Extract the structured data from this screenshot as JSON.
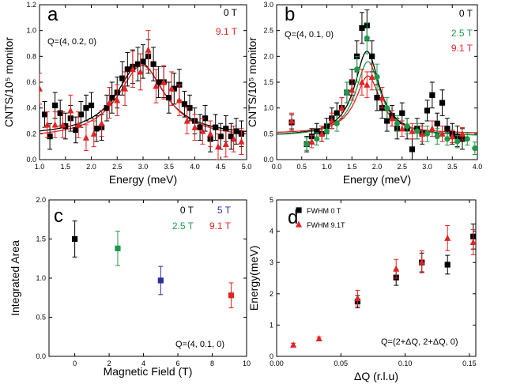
{
  "colors": {
    "black": "#000000",
    "red": "#e32222",
    "green": "#1c9a4a",
    "blue": "#2a2d9c"
  },
  "chart_data": [
    {
      "id": "a",
      "type": "scatter",
      "letter": "a",
      "xlabel": "Energy (meV)",
      "ylabel": "CNTS/10⁵ monitor",
      "xlim": [
        1.0,
        5.0
      ],
      "ylim": [
        0.0,
        1.2
      ],
      "xticks": [
        "1.0",
        "1.5",
        "2.0",
        "2.5",
        "3.0",
        "3.5",
        "4.0",
        "4.5",
        "5.0"
      ],
      "yticks": [
        "0.0",
        "0.2",
        "0.4",
        "0.6",
        "0.8",
        "1.0",
        "1.2"
      ],
      "annotation": "Q=(4, 0.2, 0)",
      "legend": [
        {
          "label": "0 T",
          "color": "#000000"
        },
        {
          "label": "9.1 T",
          "color": "#e32222"
        }
      ],
      "series": [
        {
          "name": "0 T",
          "color": "#000000",
          "marker": "square",
          "x": [
            1.1,
            1.2,
            1.3,
            1.4,
            1.5,
            1.6,
            1.7,
            1.8,
            1.9,
            2.0,
            2.1,
            2.2,
            2.3,
            2.4,
            2.5,
            2.6,
            2.7,
            2.8,
            2.9,
            3.0,
            3.1,
            3.2,
            3.3,
            3.4,
            3.5,
            3.6,
            3.7,
            3.8,
            3.9,
            4.0,
            4.1,
            4.2,
            4.3,
            4.4,
            4.5,
            4.6,
            4.7,
            4.8,
            4.9
          ],
          "y": [
            0.35,
            0.18,
            0.42,
            0.36,
            0.26,
            0.32,
            0.23,
            0.35,
            0.4,
            0.42,
            0.24,
            0.25,
            0.4,
            0.48,
            0.52,
            0.63,
            0.7,
            0.72,
            0.74,
            0.76,
            0.8,
            0.74,
            0.6,
            0.6,
            0.48,
            0.55,
            0.58,
            0.43,
            0.4,
            0.3,
            0.25,
            0.32,
            0.16,
            0.25,
            0.18,
            0.24,
            0.18,
            0.22,
            0.2
          ],
          "err": [
            0.1,
            0.1,
            0.1,
            0.1,
            0.1,
            0.1,
            0.1,
            0.1,
            0.1,
            0.1,
            0.1,
            0.1,
            0.1,
            0.12,
            0.12,
            0.13,
            0.13,
            0.13,
            0.13,
            0.13,
            0.13,
            0.13,
            0.12,
            0.12,
            0.12,
            0.12,
            0.12,
            0.1,
            0.1,
            0.1,
            0.1,
            0.1,
            0.1,
            0.1,
            0.1,
            0.1,
            0.1,
            0.1,
            0.1
          ]
        },
        {
          "name": "9.1 T",
          "color": "#e32222",
          "marker": "triangle",
          "x": [
            1.0,
            1.15,
            1.3,
            1.45,
            1.6,
            1.75,
            1.9,
            2.05,
            2.2,
            2.35,
            2.5,
            2.65,
            2.8,
            2.95,
            3.1,
            3.25,
            3.4,
            3.55,
            3.7,
            3.85,
            4.0,
            4.15,
            4.3,
            4.45,
            4.6,
            4.75,
            4.9
          ],
          "y": [
            0.55,
            0.27,
            0.27,
            0.27,
            0.38,
            0.27,
            0.17,
            0.2,
            0.28,
            0.44,
            0.46,
            0.55,
            0.7,
            0.68,
            0.85,
            0.57,
            0.6,
            0.55,
            0.46,
            0.3,
            0.25,
            0.22,
            0.2,
            0.1,
            0.12,
            0.16,
            0.14
          ],
          "err": [
            0.12,
            0.1,
            0.1,
            0.1,
            0.12,
            0.1,
            0.1,
            0.1,
            0.1,
            0.12,
            0.12,
            0.13,
            0.14,
            0.14,
            0.15,
            0.13,
            0.13,
            0.13,
            0.12,
            0.1,
            0.1,
            0.1,
            0.1,
            0.1,
            0.1,
            0.1,
            0.1
          ]
        }
      ],
      "fits": [
        {
          "name": "0 T",
          "color": "#000000",
          "base": 0.18,
          "amp": 0.57,
          "center": 2.95,
          "width": 0.55
        },
        {
          "name": "9.1 T",
          "color": "#e32222",
          "base": 0.16,
          "amp": 0.57,
          "center": 2.98,
          "width": 0.56
        }
      ]
    },
    {
      "id": "b",
      "type": "scatter",
      "letter": "b",
      "xlabel": "Energy (meV)",
      "ylabel": "CNTS/10⁵ monitor",
      "xlim": [
        0.0,
        4.0
      ],
      "ylim": [
        0.0,
        3.0
      ],
      "xticks": [
        "0.0",
        "0.5",
        "1.0",
        "1.5",
        "2.0",
        "2.5",
        "3.0",
        "3.5",
        "4.0"
      ],
      "yticks": [
        "0.0",
        "0.5",
        "1.0",
        "1.5",
        "2.0",
        "2.5",
        "3.0"
      ],
      "annotation": "Q=(4, 0.1, 0)",
      "legend": [
        {
          "label": "0 T",
          "color": "#000000"
        },
        {
          "label": "2.5 T",
          "color": "#1c9a4a"
        },
        {
          "label": "9.1 T",
          "color": "#e32222"
        }
      ],
      "series": [
        {
          "name": "0 T",
          "color": "#000000",
          "marker": "square",
          "x": [
            0.3,
            0.6,
            0.7,
            0.8,
            0.9,
            1.0,
            1.1,
            1.2,
            1.3,
            1.4,
            1.5,
            1.6,
            1.7,
            1.8,
            1.9,
            2.0,
            2.1,
            2.2,
            2.3,
            2.4,
            2.5,
            2.6,
            2.7,
            2.8,
            2.9,
            3.0,
            3.1,
            3.2,
            3.3,
            3.4,
            3.5,
            3.6,
            3.7
          ],
          "y": [
            0.72,
            0.3,
            0.45,
            0.55,
            0.5,
            0.65,
            0.8,
            0.9,
            1.0,
            1.3,
            1.5,
            2.0,
            2.55,
            2.6,
            2.0,
            1.2,
            1.0,
            0.75,
            0.85,
            0.6,
            0.9,
            0.6,
            0.2,
            0.6,
            0.5,
            0.95,
            1.25,
            0.7,
            1.1,
            0.6,
            0.5,
            0.45,
            0.4
          ],
          "err": [
            0.15,
            0.15,
            0.15,
            0.15,
            0.15,
            0.15,
            0.2,
            0.2,
            0.2,
            0.2,
            0.25,
            0.3,
            0.3,
            0.3,
            0.3,
            0.25,
            0.2,
            0.2,
            0.2,
            0.2,
            0.2,
            0.2,
            0.2,
            0.2,
            0.2,
            0.2,
            0.25,
            0.2,
            0.25,
            0.2,
            0.2,
            0.2,
            0.2
          ]
        },
        {
          "name": "2.5 T",
          "color": "#1c9a4a",
          "marker": "circle",
          "x": [
            0.6,
            0.8,
            1.0,
            1.2,
            1.4,
            1.6,
            1.8,
            2.0,
            2.2,
            2.4,
            2.6,
            2.8,
            3.0,
            3.2,
            3.4,
            3.6,
            3.8,
            3.95
          ],
          "y": [
            0.3,
            0.4,
            0.55,
            0.7,
            1.3,
            1.75,
            2.35,
            1.6,
            1.0,
            0.7,
            0.65,
            0.55,
            0.5,
            0.45,
            0.4,
            0.35,
            0.4,
            0.22
          ],
          "err": [
            0.12,
            0.12,
            0.15,
            0.15,
            0.2,
            0.25,
            0.3,
            0.25,
            0.2,
            0.15,
            0.15,
            0.15,
            0.15,
            0.15,
            0.12,
            0.12,
            0.12,
            0.12
          ]
        },
        {
          "name": "9.1 T",
          "color": "#e32222",
          "marker": "triangle",
          "x": [
            0.3,
            0.7,
            0.9,
            1.1,
            1.3,
            1.5,
            1.7,
            1.8,
            1.9,
            2.1,
            2.3,
            2.5,
            2.7,
            2.9,
            3.1,
            3.3,
            3.5,
            3.7
          ],
          "y": [
            0.75,
            0.35,
            0.5,
            0.75,
            1.0,
            1.35,
            1.5,
            1.45,
            1.6,
            1.2,
            0.8,
            0.6,
            0.55,
            0.5,
            0.6,
            0.5,
            0.45,
            0.5
          ],
          "err": [
            0.15,
            0.12,
            0.15,
            0.15,
            0.2,
            0.2,
            0.25,
            0.25,
            0.25,
            0.2,
            0.15,
            0.15,
            0.15,
            0.15,
            0.15,
            0.15,
            0.12,
            0.12
          ]
        }
      ],
      "fits": [
        {
          "name": "0 T",
          "color": "#000000",
          "base": 0.45,
          "amp": 1.65,
          "center": 1.8,
          "width": 0.3
        },
        {
          "name": "2.5 T",
          "color": "#1c9a4a",
          "base": 0.45,
          "amp": 1.45,
          "center": 1.82,
          "width": 0.3
        },
        {
          "name": "9.1 T",
          "color": "#e32222",
          "base": 0.5,
          "amp": 1.12,
          "center": 1.82,
          "width": 0.3
        }
      ]
    },
    {
      "id": "c",
      "type": "scatter",
      "letter": "c",
      "xlabel": "Magnetic Field (T)",
      "ylabel": "Integrated Area",
      "xlim": [
        -1.5,
        10.0
      ],
      "ylim": [
        0.0,
        2.0
      ],
      "xticks": [
        "0",
        "2",
        "4",
        "6",
        "8",
        "10"
      ],
      "yticks": [
        "0.0",
        "0.5",
        "1.0",
        "1.5",
        "2.0"
      ],
      "annotation": "Q=(4, 0.1, 0)",
      "legend": [
        {
          "label": "0 T",
          "color": "#000000"
        },
        {
          "label": "5 T",
          "color": "#2a2d9c"
        },
        {
          "label": "2.5 T",
          "color": "#1c9a4a"
        },
        {
          "label": "9.1 T",
          "color": "#e32222"
        }
      ],
      "series": [
        {
          "name": "0 T",
          "color": "#000000",
          "marker": "square",
          "x": [
            0
          ],
          "y": [
            1.5
          ],
          "err": [
            0.23
          ]
        },
        {
          "name": "2.5 T",
          "color": "#1c9a4a",
          "marker": "square",
          "x": [
            2.5
          ],
          "y": [
            1.38
          ],
          "err": [
            0.22
          ]
        },
        {
          "name": "5 T",
          "color": "#2a2d9c",
          "marker": "square",
          "x": [
            5
          ],
          "y": [
            0.97
          ],
          "err": [
            0.18
          ]
        },
        {
          "name": "9.1 T",
          "color": "#e32222",
          "marker": "square",
          "x": [
            9.1
          ],
          "y": [
            0.78
          ],
          "err": [
            0.16
          ]
        }
      ],
      "fits": []
    },
    {
      "id": "d",
      "type": "scatter",
      "letter": "d",
      "xlabel": "ΔQ (r.l.u)",
      "ylabel": "Energy(meV)",
      "xlim": [
        0.0,
        0.155
      ],
      "ylim": [
        0,
        5
      ],
      "xticks": [
        "0.00",
        "0.05",
        "0.10",
        "0.15"
      ],
      "yticks": [
        "0",
        "1",
        "2",
        "3",
        "4",
        "5"
      ],
      "annotation": "Q=(2+ΔQ, 2+ΔQ, 0)",
      "legend": [
        {
          "label": "FWHM 0 T",
          "color": "#000000",
          "marker": "square"
        },
        {
          "label": "FWHM 9.1T",
          "color": "#e32222",
          "marker": "triangle"
        }
      ],
      "series": [
        {
          "name": "FWHM 0 T",
          "color": "#000000",
          "marker": "square",
          "x": [
            0.063,
            0.093,
            0.113,
            0.133,
            0.153
          ],
          "y": [
            1.75,
            2.52,
            3.0,
            2.93,
            3.83
          ],
          "err": [
            0.2,
            0.25,
            0.3,
            0.3,
            0.4
          ]
        },
        {
          "name": "FWHM 9.1T",
          "color": "#e32222",
          "marker": "triangle",
          "x": [
            0.013,
            0.033,
            0.063,
            0.093,
            0.113,
            0.133,
            0.153
          ],
          "y": [
            0.37,
            0.57,
            1.86,
            2.8,
            3.02,
            3.78,
            3.65
          ],
          "err": [
            0.05,
            0.05,
            0.25,
            0.3,
            0.35,
            0.4,
            0.4
          ]
        }
      ],
      "fits": []
    }
  ]
}
